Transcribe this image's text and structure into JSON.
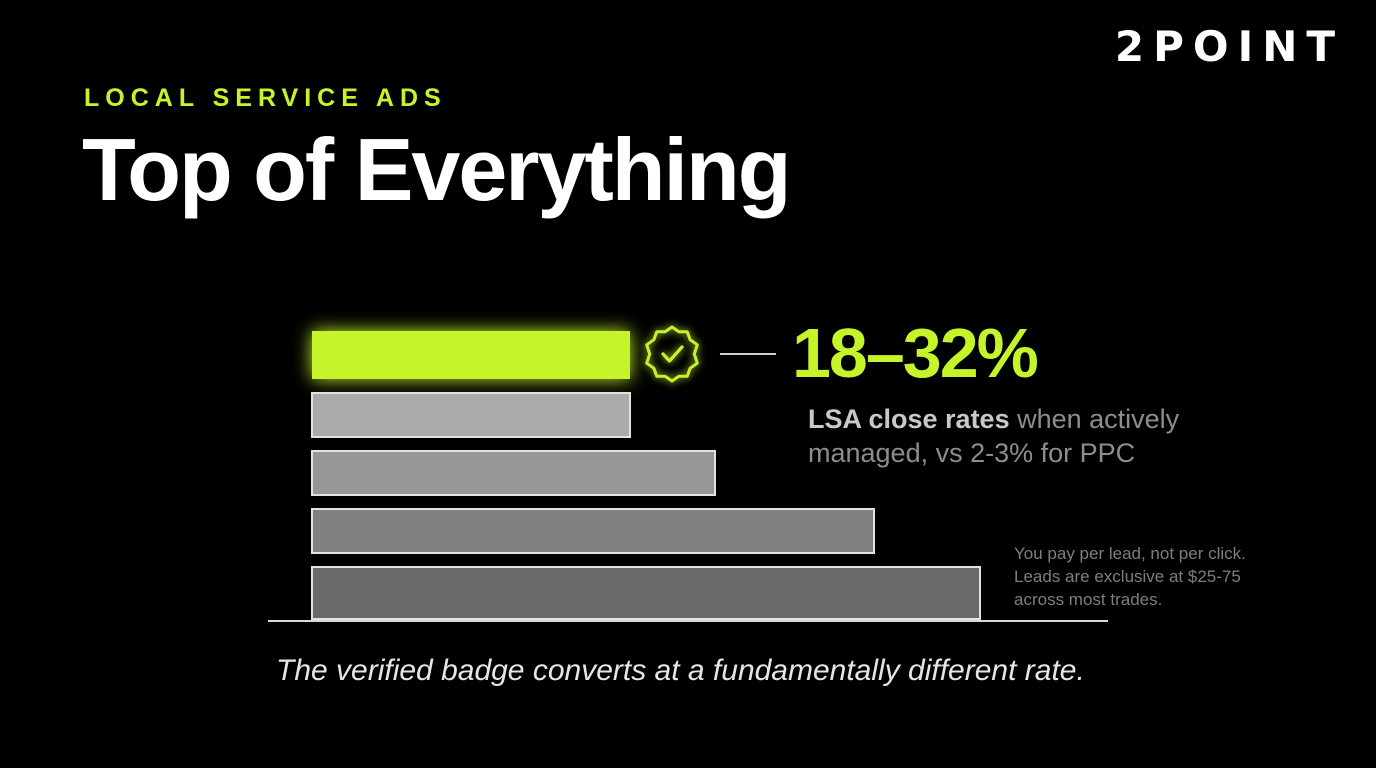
{
  "brand": {
    "logo_text": "2POINT"
  },
  "header": {
    "eyebrow": "LOCAL SERVICE ADS",
    "title": "Top of Everything"
  },
  "highlight": {
    "stat": "18–32%",
    "desc_bold": "LSA close rates",
    "desc_rest_line1": " when actively",
    "desc_line2": "managed, vs 2-3% for PPC"
  },
  "side_note": {
    "lines": [
      "You pay per lead, not per click.",
      "Leads are exclusive at $25-75",
      "across most trades."
    ]
  },
  "caption": "The verified badge converts at a fundamentally different rate.",
  "icons": {
    "badge": "verified-badge-icon"
  },
  "colors": {
    "accent": "#c6f42a",
    "background": "#000000",
    "bar_fills": [
      "#c6f42a",
      "#aaaaaa",
      "#979797",
      "#808080",
      "#6a6a6a"
    ]
  },
  "chart_data": {
    "type": "bar",
    "orientation": "horizontal",
    "values": [
      0.3,
      0.3,
      0.38,
      0.53,
      0.63
    ],
    "highlighted_index": 0,
    "grid": false
  }
}
